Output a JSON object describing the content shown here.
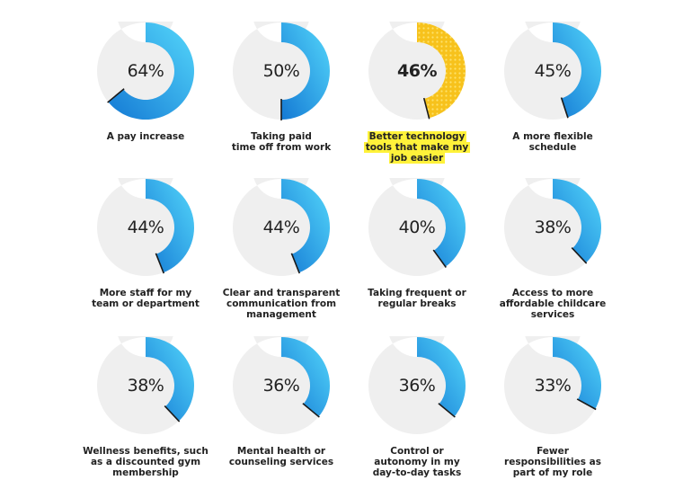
{
  "chart_data": {
    "type": "donut",
    "colors": {
      "track": "#efefef",
      "blue_start": "#1479d4",
      "blue_end": "#55d8fb",
      "highlight": "#f7c21c",
      "highlight_dots": "#fde26b",
      "label_highlight": "#fff23a"
    },
    "items": [
      {
        "value": 64,
        "pct_label": "64%",
        "label_lines": [
          "A pay increase"
        ],
        "highlight": false
      },
      {
        "value": 50,
        "pct_label": "50%",
        "label_lines": [
          "Taking paid",
          "time off from work"
        ],
        "highlight": false
      },
      {
        "value": 46,
        "pct_label": "46%",
        "label_lines": [
          "Better technology",
          "tools that make my",
          "job easier"
        ],
        "highlight": true
      },
      {
        "value": 45,
        "pct_label": "45%",
        "label_lines": [
          "A more flexible",
          "schedule"
        ],
        "highlight": false
      },
      {
        "value": 44,
        "pct_label": "44%",
        "label_lines": [
          "More staff for my",
          "team or department"
        ],
        "highlight": false
      },
      {
        "value": 44,
        "pct_label": "44%",
        "label_lines": [
          "Clear and transparent",
          "communication from",
          "management"
        ],
        "highlight": false
      },
      {
        "value": 40,
        "pct_label": "40%",
        "label_lines": [
          "Taking frequent or",
          "regular breaks"
        ],
        "highlight": false
      },
      {
        "value": 38,
        "pct_label": "38%",
        "label_lines": [
          "Access to more",
          "affordable childcare",
          "services"
        ],
        "highlight": false
      },
      {
        "value": 38,
        "pct_label": "38%",
        "label_lines": [
          "Wellness benefits, such",
          "as a discounted gym",
          "membership"
        ],
        "highlight": false
      },
      {
        "value": 36,
        "pct_label": "36%",
        "label_lines": [
          "Mental health or",
          "counseling services"
        ],
        "highlight": false
      },
      {
        "value": 36,
        "pct_label": "36%",
        "label_lines": [
          "Control or",
          "autonomy in my",
          "day-to-day tasks"
        ],
        "highlight": false
      },
      {
        "value": 33,
        "pct_label": "33%",
        "label_lines": [
          "Fewer",
          "responsibilities as",
          "part of my role"
        ],
        "highlight": false
      }
    ]
  }
}
